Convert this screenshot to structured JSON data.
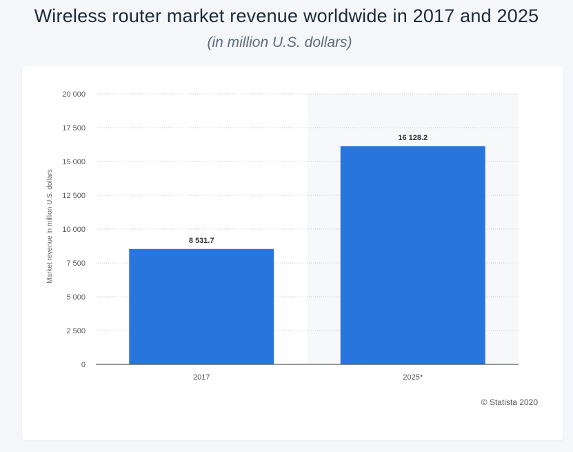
{
  "page": {
    "title": "Wireless router market revenue worldwide in 2017 and 2025",
    "subtitle": "(in million U.S. dollars)",
    "credit": "© Statista 2020"
  },
  "colors": {
    "bar": "#2876dd",
    "highlight_band": "#f7f8fa",
    "grid": "#c9c9c9",
    "axis": "#333333"
  },
  "chart_data": {
    "type": "bar",
    "categories": [
      "2017",
      "2025*"
    ],
    "values": [
      8531.7,
      16128.2
    ],
    "value_labels": [
      "8 531.7",
      "16 128.2"
    ],
    "title": "Wireless router market revenue worldwide in 2017 and 2025",
    "subtitle": "(in million U.S. dollars)",
    "xlabel": "",
    "ylabel": "Market revenue in million U.S. dollars",
    "ylim": [
      0,
      20000
    ],
    "yticks": [
      0,
      2500,
      5000,
      7500,
      10000,
      12500,
      15000,
      17500,
      20000
    ],
    "ytick_labels": [
      "0",
      "2 500",
      "5 000",
      "7 500",
      "10 000",
      "12 500",
      "15 000",
      "17 500",
      "20 000"
    ],
    "grid": true,
    "legend": "none",
    "highlighted_category": "2025*"
  }
}
